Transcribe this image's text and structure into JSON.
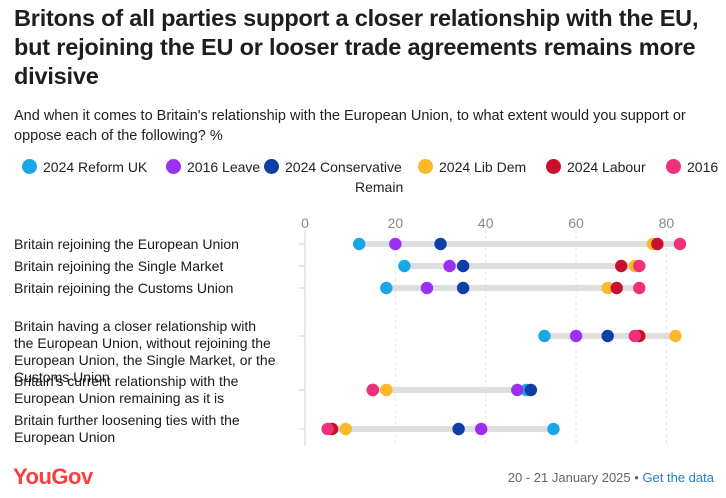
{
  "header": {
    "title": "Britons of all parties support a closer relationship with the EU, but rejoining the EU or looser trade agreements remains more divisive",
    "subtitle": "And when it comes to Britain's relationship with the European Union, to what extent would you support or oppose each of the following? %"
  },
  "footer": {
    "logo": "YouGov",
    "date": "20 - 21 January 2025",
    "separator": " • ",
    "link": "Get the data"
  },
  "chart_data": {
    "type": "dot-plot",
    "xlim": [
      0,
      85
    ],
    "ticks": [
      "0",
      "20",
      "40",
      "60",
      "80"
    ],
    "tick_values": [
      0,
      20,
      40,
      60,
      80
    ],
    "legend_position": "top",
    "categories": [
      "Britain rejoining the European Union",
      "Britain rejoining the Single Market",
      "Britain rejoining the Customs Union",
      "Britain having a closer relationship with the European Union, without rejoining the European Union, the Single Market, or the Customs Union",
      "Britain's current relationship with the European Union remaining as it is",
      "Britain further loosening ties with the European Union"
    ],
    "category_lines": [
      [
        "Britain rejoining the European Union"
      ],
      [
        "Britain rejoining the Single Market"
      ],
      [
        "Britain rejoining the Customs Union"
      ],
      [
        "Britain having a closer relationship with",
        "the European Union, without rejoining the",
        "European Union, the Single Market, or the",
        "Customs Union"
      ],
      [
        "Britain's current relationship with the",
        "European Union remaining as it is"
      ],
      [
        "Britain further loosening ties with the",
        "European Union"
      ]
    ],
    "series": [
      {
        "name": "2024 Reform UK",
        "color": "#1ba6e8",
        "values": [
          12,
          22,
          18,
          53,
          49,
          55
        ]
      },
      {
        "name": "2016 Leave",
        "color": "#9b30f0",
        "values": [
          20,
          32,
          27,
          60,
          47,
          39
        ]
      },
      {
        "name": "2024 Conservative",
        "color": "#0d3fa6",
        "values": [
          30,
          35,
          35,
          67,
          50,
          34
        ]
      },
      {
        "name": "2024 Lib Dem",
        "color": "#fbb829",
        "values": [
          77,
          73,
          67,
          82,
          18,
          9
        ]
      },
      {
        "name": "2024 Labour",
        "color": "#c8102e",
        "values": [
          78,
          70,
          69,
          74,
          15,
          6
        ]
      },
      {
        "name": "2016 Remain",
        "color": "#f0307b",
        "values": [
          83,
          74,
          74,
          73,
          15,
          5
        ]
      }
    ]
  }
}
